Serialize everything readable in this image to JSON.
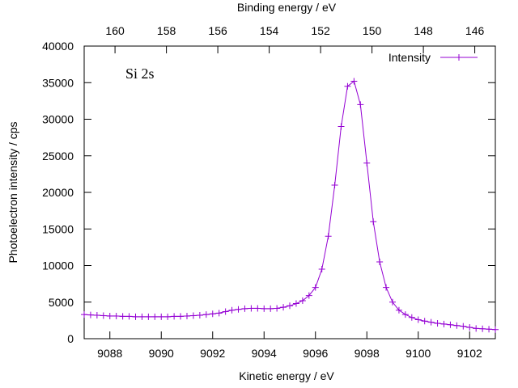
{
  "chart_data": {
    "type": "line",
    "annotation": "Si 2s",
    "xlabel": "Kinetic energy / eV",
    "ylabel": "Photoelectron intensity / cps",
    "x2label": "Binding energy / eV",
    "xlim": [
      9087,
      9103
    ],
    "ylim": [
      0,
      40000
    ],
    "x2lim": [
      161.2,
      145.2
    ],
    "xticks": [
      9088,
      9090,
      9092,
      9094,
      9096,
      9098,
      9100,
      9102
    ],
    "yticks": [
      0,
      5000,
      10000,
      15000,
      20000,
      25000,
      30000,
      35000,
      40000
    ],
    "x2ticks": [
      160,
      158,
      156,
      154,
      152,
      150,
      148,
      146
    ],
    "legend_position": "top-right",
    "grid": false,
    "series": [
      {
        "name": "Intensity",
        "color": "#9400d3",
        "marker": "plus",
        "x": [
          9087.0,
          9087.25,
          9087.5,
          9087.75,
          9088.0,
          9088.25,
          9088.5,
          9088.75,
          9089.0,
          9089.25,
          9089.5,
          9089.75,
          9090.0,
          9090.25,
          9090.5,
          9090.75,
          9091.0,
          9091.25,
          9091.5,
          9091.75,
          9092.0,
          9092.25,
          9092.5,
          9092.75,
          9093.0,
          9093.25,
          9093.5,
          9093.75,
          9094.0,
          9094.25,
          9094.5,
          9094.75,
          9095.0,
          9095.25,
          9095.5,
          9095.75,
          9096.0,
          9096.25,
          9096.5,
          9096.75,
          9097.0,
          9097.25,
          9097.5,
          9097.75,
          9098.0,
          9098.25,
          9098.5,
          9098.75,
          9099.0,
          9099.25,
          9099.5,
          9099.75,
          9100.0,
          9100.25,
          9100.5,
          9100.75,
          9101.0,
          9101.25,
          9101.5,
          9101.75,
          9102.0,
          9102.25,
          9102.5,
          9102.75,
          9103.0
        ],
        "y": [
          3300,
          3250,
          3200,
          3150,
          3100,
          3100,
          3050,
          3050,
          3000,
          3000,
          3000,
          3000,
          3000,
          3000,
          3050,
          3050,
          3100,
          3150,
          3200,
          3300,
          3400,
          3500,
          3700,
          3900,
          4000,
          4100,
          4150,
          4150,
          4100,
          4100,
          4150,
          4300,
          4500,
          4800,
          5200,
          5900,
          7000,
          9500,
          14000,
          21000,
          29000,
          34500,
          35200,
          32000,
          24000,
          16000,
          10500,
          7000,
          5000,
          3900,
          3300,
          2900,
          2600,
          2400,
          2250,
          2100,
          2000,
          1900,
          1800,
          1700,
          1550,
          1400,
          1350,
          1300,
          1250
        ]
      }
    ]
  }
}
